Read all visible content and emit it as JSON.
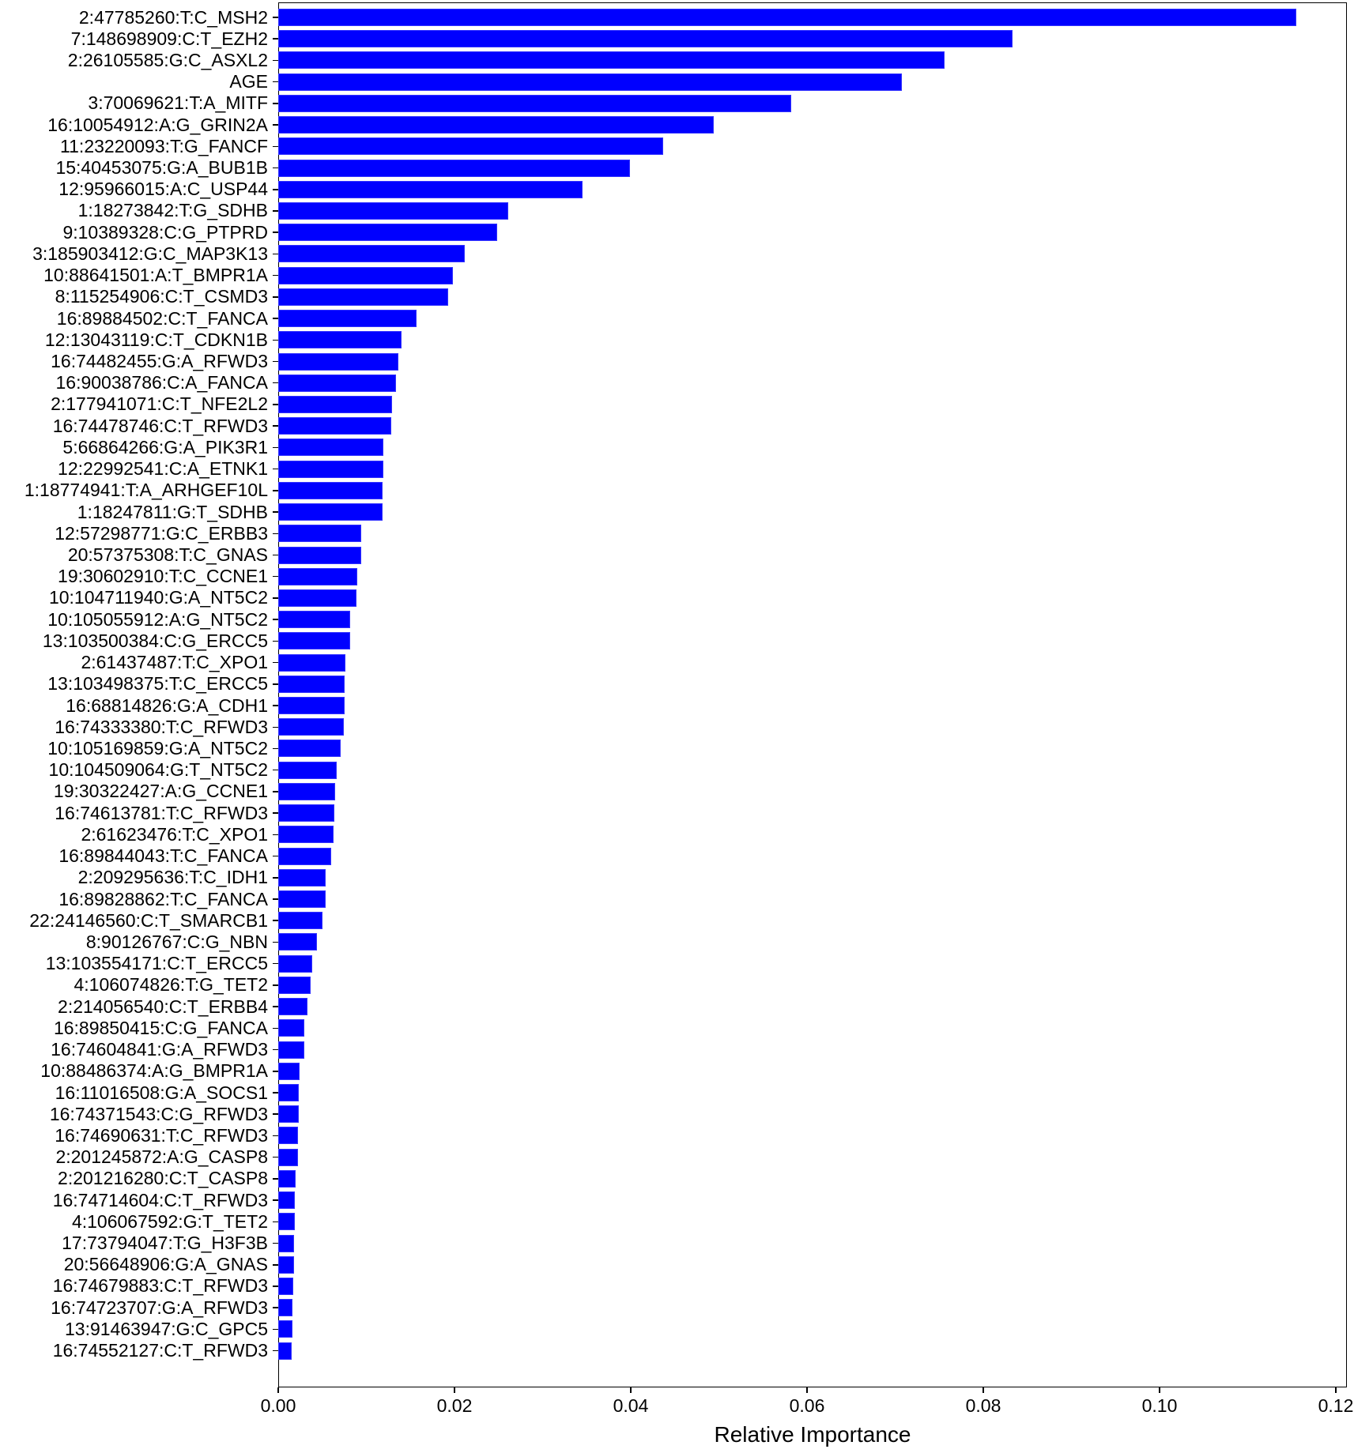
{
  "chart_data": {
    "type": "bar",
    "orientation": "horizontal",
    "title": "",
    "xlabel": "Relative Importance",
    "ylabel": "",
    "xlim": [
      0.0,
      0.1213
    ],
    "grid": false,
    "legend": null,
    "bar_color": "#0000ff",
    "xticks": [
      "0.00",
      "0.02",
      "0.04",
      "0.06",
      "0.08",
      "0.10",
      "0.12"
    ],
    "categories": [
      "2:47785260:T:C_MSH2",
      "7:148698909:C:T_EZH2",
      "2:26105585:G:C_ASXL2",
      "AGE",
      "3:70069621:T:A_MITF",
      "16:10054912:A:G_GRIN2A",
      "11:23220093:T:G_FANCF",
      "15:40453075:G:A_BUB1B",
      "12:95966015:A:C_USP44",
      "1:18273842:T:G_SDHB",
      "9:10389328:C:G_PTPRD",
      "3:185903412:G:C_MAP3K13",
      "10:88641501:A:T_BMPR1A",
      "8:115254906:C:T_CSMD3",
      "16:89884502:C:T_FANCA",
      "12:13043119:C:T_CDKN1B",
      "16:74482455:G:A_RFWD3",
      "16:90038786:C:A_FANCA",
      "2:177941071:C:T_NFE2L2",
      "16:74478746:C:T_RFWD3",
      "5:66864266:G:A_PIK3R1",
      "12:22992541:C:A_ETNK1",
      "1:18774941:T:A_ARHGEF10L",
      "1:18247811:G:T_SDHB",
      "12:57298771:G:C_ERBB3",
      "20:57375308:T:C_GNAS",
      "19:30602910:T:C_CCNE1",
      "10:104711940:G:A_NT5C2",
      "10:105055912:A:G_NT5C2",
      "13:103500384:C:G_ERCC5",
      "2:61437487:T:C_XPO1",
      "13:103498375:T:C_ERCC5",
      "16:68814826:G:A_CDH1",
      "16:74333380:T:C_RFWD3",
      "10:105169859:G:A_NT5C2",
      "10:104509064:G:T_NT5C2",
      "19:30322427:A:G_CCNE1",
      "16:74613781:T:C_RFWD3",
      "2:61623476:T:C_XPO1",
      "16:89844043:T:C_FANCA",
      "2:209295636:T:C_IDH1",
      "16:89828862:T:C_FANCA",
      "22:24146560:C:T_SMARCB1",
      "8:90126767:C:G_NBN",
      "13:103554171:C:T_ERCC5",
      "4:106074826:T:G_TET2",
      "2:214056540:C:T_ERBB4",
      "16:89850415:C:G_FANCA",
      "16:74604841:G:A_RFWD3",
      "10:88486374:A:G_BMPR1A",
      "16:11016508:G:A_SOCS1",
      "16:74371543:C:G_RFWD3",
      "16:74690631:T:C_RFWD3",
      "2:201245872:A:G_CASP8",
      "2:201216280:C:T_CASP8",
      "16:74714604:C:T_RFWD3",
      "4:106067592:G:T_TET2",
      "17:73794047:T:G_H3F3B",
      "20:56648906:G:A_GNAS",
      "16:74679883:C:T_RFWD3",
      "16:74723707:G:A_RFWD3",
      "13:91463947:G:C_GPC5",
      "16:74552127:C:T_RFWD3"
    ],
    "values": [
      0.1155,
      0.0833,
      0.0756,
      0.0708,
      0.0582,
      0.0494,
      0.0437,
      0.0399,
      0.0345,
      0.0261,
      0.0248,
      0.0212,
      0.0198,
      0.0193,
      0.0157,
      0.014,
      0.0136,
      0.0134,
      0.0129,
      0.0128,
      0.0119,
      0.0119,
      0.0118,
      0.0118,
      0.0094,
      0.0094,
      0.009,
      0.0089,
      0.0082,
      0.0082,
      0.0076,
      0.0075,
      0.0075,
      0.0074,
      0.0071,
      0.0066,
      0.0065,
      0.0064,
      0.0063,
      0.006,
      0.0054,
      0.0054,
      0.005,
      0.0044,
      0.0039,
      0.0037,
      0.0033,
      0.003,
      0.003,
      0.0024,
      0.0023,
      0.0023,
      0.0022,
      0.0022,
      0.002,
      0.0019,
      0.0019,
      0.0018,
      0.0018,
      0.0017,
      0.0016,
      0.0016,
      0.0015
    ]
  }
}
